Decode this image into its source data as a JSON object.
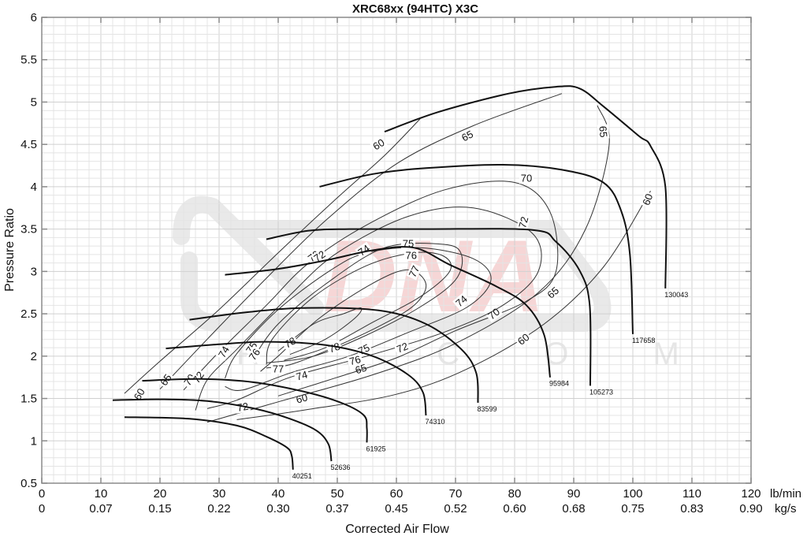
{
  "chart_data": {
    "type": "line",
    "title": "XRC68xx (94HTC) X3C",
    "xlabel": "Corrected Air Flow",
    "ylabel": "Pressure Ratio",
    "xlim": [
      0,
      120
    ],
    "ylim": [
      0.5,
      6
    ],
    "grid": true,
    "x_ticks_primary": {
      "unit": "lb/min",
      "values": [
        "0",
        "10",
        "20",
        "30",
        "40",
        "50",
        "60",
        "70",
        "80",
        "90",
        "100",
        "110",
        "120"
      ]
    },
    "x_ticks_secondary": {
      "unit": "kg/s",
      "values": [
        "0",
        "0.07",
        "0.15",
        "0.22",
        "0.30",
        "0.37",
        "0.45",
        "0.52",
        "0.60",
        "0.68",
        "0.75",
        "0.83",
        "0.90"
      ]
    },
    "y_ticks": [
      "0.5",
      "1",
      "1.5",
      "2",
      "2.5",
      "3",
      "3.5",
      "4",
      "4.5",
      "5",
      "5.5",
      "6"
    ],
    "speed_lines": [
      {
        "name": "40251",
        "points": [
          [
            14,
            1.28
          ],
          [
            25,
            1.26
          ],
          [
            33,
            1.18
          ],
          [
            38,
            1.05
          ],
          [
            41.5,
            0.92
          ],
          [
            42.3,
            0.82
          ],
          [
            42.5,
            0.66
          ]
        ]
      },
      {
        "name": "52636",
        "points": [
          [
            12,
            1.48
          ],
          [
            20,
            1.49
          ],
          [
            28,
            1.47
          ],
          [
            36,
            1.38
          ],
          [
            42,
            1.26
          ],
          [
            46.5,
            1.12
          ],
          [
            48.5,
            0.96
          ],
          [
            49,
            0.76
          ]
        ]
      },
      {
        "name": "61925",
        "points": [
          [
            17,
            1.71
          ],
          [
            27,
            1.73
          ],
          [
            36,
            1.69
          ],
          [
            45,
            1.57
          ],
          [
            51,
            1.44
          ],
          [
            54.5,
            1.3
          ],
          [
            55,
            1.15
          ],
          [
            55,
            0.98
          ]
        ]
      },
      {
        "name": "74310",
        "points": [
          [
            21,
            2.09
          ],
          [
            30,
            2.14
          ],
          [
            38,
            2.17
          ],
          [
            48,
            2.13
          ],
          [
            56,
            2.0
          ],
          [
            62,
            1.78
          ],
          [
            64.5,
            1.57
          ],
          [
            65,
            1.3
          ]
        ]
      },
      {
        "name": "83599",
        "points": [
          [
            25,
            2.43
          ],
          [
            35,
            2.52
          ],
          [
            45,
            2.57
          ],
          [
            57,
            2.54
          ],
          [
            65,
            2.38
          ],
          [
            71,
            2.08
          ],
          [
            73.5,
            1.8
          ],
          [
            73.8,
            1.45
          ]
        ]
      },
      {
        "name": "95984",
        "points": [
          [
            31,
            2.96
          ],
          [
            40,
            3.03
          ],
          [
            48,
            3.13
          ],
          [
            56,
            3.25
          ],
          [
            63,
            3.28
          ],
          [
            69,
            3.08
          ],
          [
            77,
            2.82
          ],
          [
            82,
            2.6
          ],
          [
            85,
            2.25
          ],
          [
            86,
            1.75
          ]
        ]
      },
      {
        "name": "105273",
        "points": [
          [
            38,
            3.38
          ],
          [
            45,
            3.48
          ],
          [
            52,
            3.5
          ],
          [
            65,
            3.5
          ],
          [
            83,
            3.49
          ],
          [
            87,
            3.35
          ],
          [
            91,
            3.01
          ],
          [
            92.7,
            2.6
          ],
          [
            92.8,
            1.65
          ]
        ]
      },
      {
        "name": "117658",
        "points": [
          [
            47,
            4.0
          ],
          [
            56,
            4.15
          ],
          [
            65,
            4.22
          ],
          [
            78,
            4.26
          ],
          [
            88,
            4.2
          ],
          [
            95,
            4.05
          ],
          [
            98,
            3.72
          ],
          [
            99.5,
            3.2
          ],
          [
            100,
            2.26
          ]
        ]
      },
      {
        "name": "130043",
        "points": [
          [
            58,
            4.65
          ],
          [
            67,
            4.88
          ],
          [
            79,
            5.1
          ],
          [
            87,
            5.18
          ],
          [
            91,
            5.16
          ],
          [
            95,
            4.95
          ],
          [
            101,
            4.6
          ],
          [
            103,
            4.48
          ],
          [
            105.5,
            4.0
          ],
          [
            105.5,
            2.8
          ]
        ]
      }
    ],
    "efficiency_islands": [
      {
        "name": "60",
        "points": [
          [
            14,
            1.56
          ],
          [
            20,
            1.94
          ],
          [
            30,
            2.55
          ],
          [
            40,
            3.22
          ],
          [
            50,
            3.87
          ],
          [
            58,
            4.37
          ],
          [
            64,
            4.8
          ]
        ],
        "points2": [
          [
            33,
            1.25
          ],
          [
            45,
            1.37
          ],
          [
            60,
            1.55
          ],
          [
            72,
            1.85
          ],
          [
            85,
            2.38
          ],
          [
            95,
            3.05
          ],
          [
            103,
            3.95
          ]
        ],
        "labels": [
          [
            16.5,
            1.55,
            -60
          ],
          [
            57,
            4.5,
            -32
          ],
          [
            44,
            1.5,
            -15
          ],
          [
            81.5,
            2.2,
            -38
          ],
          [
            102.5,
            3.85,
            -70
          ]
        ]
      },
      {
        "name": "65",
        "points": [
          [
            20,
            1.61
          ],
          [
            28,
            2.2
          ],
          [
            38,
            2.92
          ],
          [
            48,
            3.6
          ],
          [
            60,
            4.27
          ],
          [
            73,
            4.72
          ],
          [
            88,
            5.1
          ]
        ],
        "points2": [
          [
            28,
            1.22
          ],
          [
            40,
            1.46
          ],
          [
            56,
            1.78
          ],
          [
            70,
            2.15
          ],
          [
            84,
            2.75
          ],
          [
            92,
            3.5
          ],
          [
            96,
            4.5
          ],
          [
            94,
            4.96
          ]
        ],
        "labels": [
          [
            21,
            1.72,
            -55
          ],
          [
            72,
            4.6,
            -28
          ],
          [
            54,
            1.85,
            -18
          ],
          [
            86.5,
            2.75,
            -40
          ],
          [
            95,
            4.65,
            85
          ]
        ]
      },
      {
        "name": "70",
        "points": [
          [
            24,
            1.6
          ],
          [
            30,
            2.05
          ],
          [
            38,
            2.6
          ],
          [
            45,
            3.09
          ],
          [
            55,
            3.55
          ],
          [
            68,
            3.96
          ],
          [
            80,
            4.05
          ],
          [
            86,
            3.7
          ],
          [
            87,
            3.0
          ],
          [
            82,
            2.65
          ],
          [
            70,
            2.3
          ],
          [
            60,
            1.98
          ],
          [
            50,
            1.75
          ],
          [
            40,
            1.53
          ]
        ],
        "labels": [
          [
            25,
            1.72,
            -55
          ],
          [
            46,
            3.18,
            -38
          ],
          [
            82,
            4.1,
            0
          ],
          [
            76.5,
            2.5,
            -38
          ],
          [
            44,
            1.8,
            -10
          ]
        ]
      },
      {
        "name": "72",
        "points": [
          [
            26,
            1.36
          ],
          [
            28,
            1.72
          ],
          [
            33,
            2.08
          ],
          [
            42,
            2.72
          ],
          [
            50,
            3.22
          ],
          [
            62,
            3.65
          ],
          [
            73,
            3.75
          ],
          [
            83,
            3.45
          ],
          [
            84,
            3.0
          ],
          [
            78,
            2.6
          ],
          [
            68,
            2.28
          ],
          [
            55,
            2.0
          ],
          [
            42,
            1.75
          ],
          [
            33,
            1.48
          ],
          [
            28,
            1.38
          ]
        ],
        "labels": [
          [
            34,
            1.4,
            -10
          ],
          [
            26.5,
            1.75,
            -55
          ],
          [
            47,
            3.18,
            -35
          ],
          [
            81.5,
            3.58,
            -75
          ],
          [
            61,
            2.1,
            -22
          ]
        ]
      },
      {
        "name": "74",
        "points": [
          [
            31,
            1.74
          ],
          [
            33,
            2.03
          ],
          [
            40,
            2.55
          ],
          [
            49,
            3.02
          ],
          [
            55,
            3.22
          ],
          [
            64,
            3.28
          ],
          [
            73,
            3.15
          ],
          [
            76,
            2.9
          ],
          [
            72,
            2.58
          ],
          [
            62,
            2.28
          ],
          [
            52,
            2.0
          ],
          [
            42,
            1.8
          ],
          [
            34,
            1.6
          ],
          [
            31,
            1.64
          ]
        ],
        "labels": [
          [
            30.8,
            2.05,
            -60
          ],
          [
            54.5,
            3.25,
            -35
          ],
          [
            71,
            2.65,
            -40
          ],
          [
            44,
            1.77,
            -15
          ]
        ]
      },
      {
        "name": "75",
        "points": [
          [
            36,
            2.0
          ],
          [
            40,
            2.38
          ],
          [
            48,
            2.85
          ],
          [
            58,
            3.28
          ],
          [
            68,
            3.32
          ],
          [
            71,
            3.2
          ],
          [
            70,
            2.9
          ],
          [
            64,
            2.58
          ],
          [
            55,
            2.25
          ],
          [
            46,
            2.0
          ],
          [
            38,
            1.92
          ]
        ],
        "labels": [
          [
            35.5,
            2.1,
            -55
          ],
          [
            62,
            3.33,
            0
          ],
          [
            54.5,
            2.08,
            -25
          ]
        ]
      },
      {
        "name": "76",
        "points": [
          [
            38,
            1.9
          ],
          [
            39,
            2.2
          ],
          [
            46,
            2.7
          ],
          [
            55,
            3.07
          ],
          [
            63,
            3.22
          ],
          [
            68,
            3.18
          ],
          [
            69,
            3.0
          ],
          [
            64,
            2.7
          ],
          [
            56,
            2.4
          ],
          [
            48,
            2.1
          ],
          [
            41,
            1.95
          ]
        ],
        "labels": [
          [
            36,
            2.02,
            -55
          ],
          [
            62.5,
            3.19,
            0
          ],
          [
            53,
            1.95,
            -15
          ]
        ]
      },
      {
        "name": "77",
        "points": [
          [
            37,
            1.82
          ],
          [
            40,
            2.0
          ],
          [
            47,
            2.45
          ],
          [
            56,
            2.86
          ],
          [
            62,
            3.02
          ],
          [
            65,
            2.85
          ],
          [
            63,
            2.6
          ],
          [
            57,
            2.35
          ],
          [
            48,
            2.06
          ],
          [
            42,
            1.9
          ],
          [
            38,
            1.86
          ]
        ],
        "labels": [
          [
            40,
            1.85,
            0
          ],
          [
            63,
            3.0,
            -65
          ]
        ]
      },
      {
        "name": "78",
        "points": [
          [
            40,
            2.06
          ],
          [
            46,
            2.38
          ],
          [
            51,
            2.5
          ],
          [
            54,
            2.57
          ],
          [
            53,
            2.45
          ],
          [
            48,
            2.2
          ],
          [
            42,
            2.02
          ]
        ],
        "labels": [
          [
            42,
            2.16,
            -30
          ],
          [
            49.5,
            2.1,
            -20
          ]
        ]
      }
    ]
  },
  "watermark": {
    "text": "DNA",
    "subtext": "R . C O M",
    "color_main": "#f3c6c6",
    "color_frame": "#e0e0e0"
  },
  "colors": {
    "speed_line": "#111111",
    "efficiency_line": "#333333",
    "grid_minor": "#e4e4e4",
    "grid_major": "#d0d0d0",
    "axis": "#8a8a8a"
  }
}
